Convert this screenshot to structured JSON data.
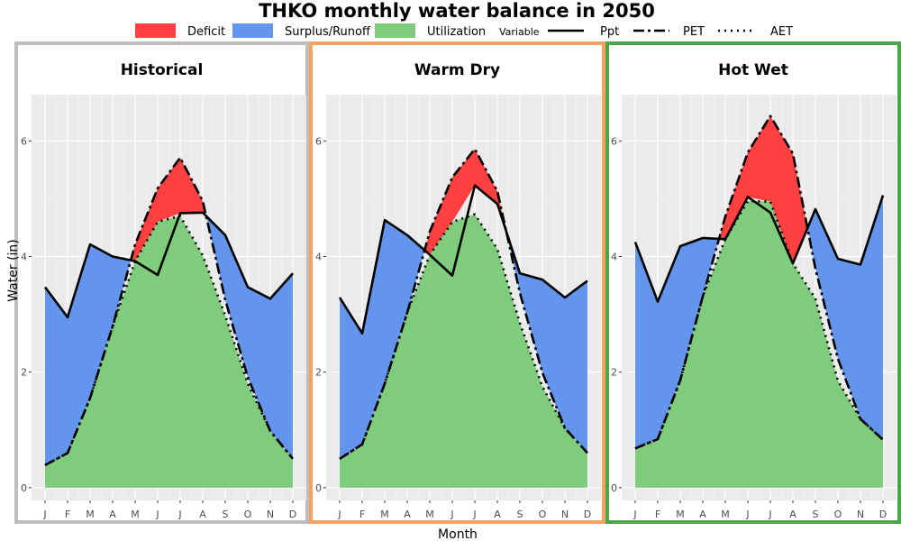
{
  "chart_data": {
    "type": "area",
    "title": "THKO monthly water balance in 2050",
    "xlabel": "Month",
    "ylabel": "Water (in)",
    "ylim": [
      0,
      6.8
    ],
    "yticks": [
      0,
      2,
      4,
      6
    ],
    "categories": [
      "J",
      "F",
      "M",
      "A",
      "M",
      "J",
      "J",
      "A",
      "S",
      "O",
      "N",
      "D"
    ],
    "grid": true,
    "legend": {
      "position": "top",
      "fill_entries": [
        {
          "name": "Deficit",
          "color": "#FF4040"
        },
        {
          "name": "Surplus/Runoff",
          "color": "#6495ED"
        },
        {
          "name": "Utilization",
          "color": "#7FCD7C"
        }
      ],
      "line_title": "Variable",
      "line_entries": [
        {
          "name": "Ppt",
          "style": "solid"
        },
        {
          "name": "PET",
          "style": "dashdot"
        },
        {
          "name": "AET",
          "style": "dotted"
        }
      ]
    },
    "panels": [
      {
        "title": "Historical",
        "border_color": "#BEBEBE",
        "series": [
          {
            "name": "Ppt",
            "values": [
              3.47,
              2.95,
              4.21,
              4.0,
              3.92,
              3.68,
              4.75,
              4.76,
              4.37,
              3.47,
              3.27,
              3.71
            ]
          },
          {
            "name": "PET",
            "values": [
              0.39,
              0.6,
              1.55,
              2.79,
              4.21,
              5.18,
              5.71,
              4.96,
              3.25,
              1.91,
              0.98,
              0.5
            ]
          },
          {
            "name": "AET",
            "values": [
              0.39,
              0.6,
              1.55,
              2.79,
              3.92,
              4.6,
              4.7,
              4.02,
              2.98,
              1.8,
              0.98,
              0.5
            ]
          }
        ]
      },
      {
        "title": "Warm Dry",
        "border_color": "#F4A460",
        "series": [
          {
            "name": "Ppt",
            "values": [
              3.29,
              2.67,
              4.63,
              4.37,
              4.03,
              3.67,
              5.23,
              4.91,
              3.71,
              3.6,
              3.29,
              3.58
            ]
          },
          {
            "name": "PET",
            "values": [
              0.5,
              0.75,
              1.8,
              3.03,
              4.43,
              5.37,
              5.86,
              5.13,
              3.37,
              1.99,
              1.03,
              0.6
            ]
          },
          {
            "name": "AET",
            "values": [
              0.5,
              0.75,
              1.8,
              3.03,
              4.03,
              4.6,
              4.73,
              4.13,
              2.85,
              1.75,
              1.03,
              0.6
            ]
          }
        ]
      },
      {
        "title": "Hot Wet",
        "border_color": "#4CA64C",
        "series": [
          {
            "name": "Ppt",
            "values": [
              4.25,
              3.22,
              4.18,
              4.32,
              4.3,
              5.03,
              4.76,
              3.88,
              4.82,
              3.96,
              3.86,
              5.06
            ]
          },
          {
            "name": "PET",
            "values": [
              0.68,
              0.84,
              1.86,
              3.31,
              4.69,
              5.8,
              6.43,
              5.78,
              3.79,
              2.23,
              1.19,
              0.83
            ]
          },
          {
            "name": "AET",
            "values": [
              0.68,
              0.84,
              1.86,
              3.31,
              4.3,
              4.96,
              4.95,
              3.88,
              3.27,
              1.85,
              1.19,
              0.83
            ]
          }
        ]
      }
    ]
  }
}
